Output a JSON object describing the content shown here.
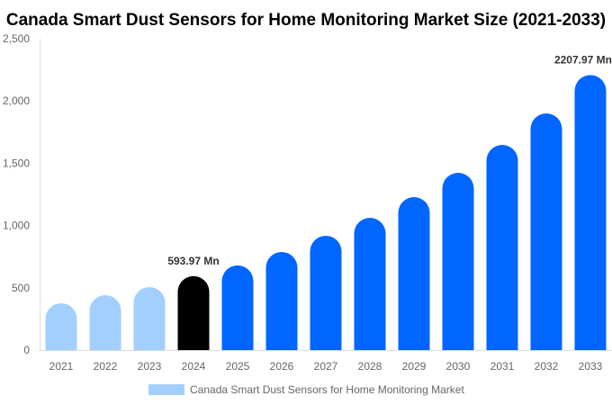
{
  "chart_data": {
    "type": "bar",
    "title": "Canada Smart Dust Sensors for Home Monitoring Market Size (2021-2033)",
    "xlabel": "",
    "ylabel": "",
    "ylim": [
      0,
      2500
    ],
    "yticks": [
      0,
      500,
      1000,
      1500,
      2000,
      2500
    ],
    "ytick_labels": [
      "0",
      "500",
      "1,000",
      "1,500",
      "2,000",
      "2,500"
    ],
    "categories": [
      "2021",
      "2022",
      "2023",
      "2024",
      "2025",
      "2026",
      "2027",
      "2028",
      "2029",
      "2030",
      "2031",
      "2032",
      "2033"
    ],
    "values": [
      376,
      441,
      506,
      593.97,
      680,
      788,
      918,
      1062,
      1228,
      1423,
      1647,
      1900,
      2207.97
    ],
    "bar_colors": [
      "#a3cfff",
      "#a3cfff",
      "#a3cfff",
      "#000000",
      "#0066ff",
      "#0066ff",
      "#0066ff",
      "#0066ff",
      "#0066ff",
      "#0066ff",
      "#0066ff",
      "#0066ff",
      "#0066ff"
    ],
    "data_labels": {
      "3": "593.97 Mn",
      "12": "2207.97 Mn"
    },
    "legend": {
      "label": "Canada Smart Dust Sensors for Home Monitoring Market",
      "color": "#a3cfff",
      "placement": "bottom"
    },
    "grid": false
  }
}
